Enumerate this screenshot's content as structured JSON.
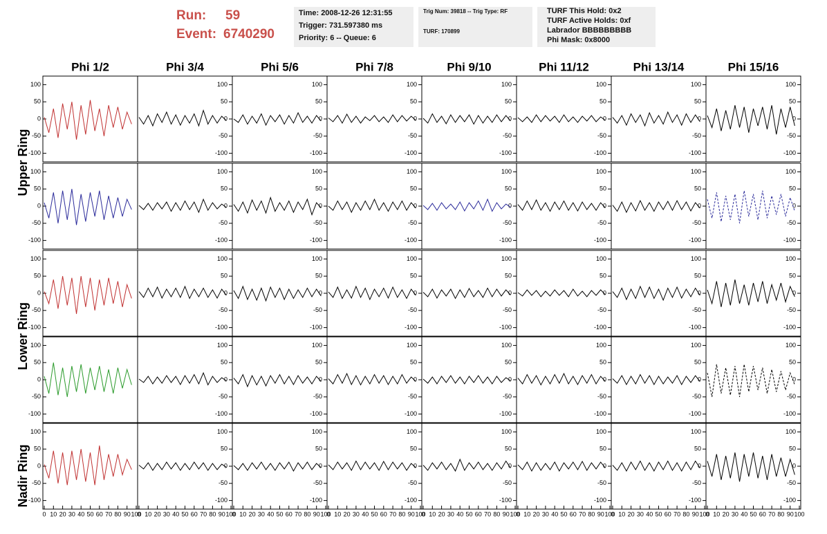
{
  "header": {
    "run_label": "Run:",
    "run": "59",
    "event_label": "Event:",
    "event": "6740290"
  },
  "info_boxes": [
    [
      "Time: 2008-12-26 12:31:55",
      "Trigger: 731.597380 ms",
      "Priority: 6 -- Queue: 6"
    ],
    [
      "Trig Num: 39818 -- Trig Type: RF",
      "TURF: 170899"
    ],
    [
      "TURF This Hold: 0x2",
      "TURF Active Holds: 0xf",
      "Labrador BBBBBBBBB",
      "Phi Mask: 0x8000"
    ]
  ],
  "columns": [
    "Phi 1/2",
    "Phi 3/4",
    "Phi 5/6",
    "Phi 7/8",
    "Phi 9/10",
    "Phi 11/12",
    "Phi 13/14",
    "Phi 15/16"
  ],
  "rings": [
    "Upper Ring",
    "Lower Ring",
    "Nadir Ring"
  ],
  "ylim": [
    -125,
    125
  ],
  "yticks": [
    -100,
    -50,
    0,
    50,
    100
  ],
  "xlim": [
    0,
    100
  ],
  "xticks": [
    0,
    10,
    20,
    30,
    40,
    50,
    60,
    70,
    80,
    90,
    100
  ],
  "sample_x": [
    0,
    5,
    10,
    15,
    20,
    25,
    30,
    35,
    40,
    45,
    50,
    55,
    60,
    65,
    70,
    75,
    80,
    85,
    90,
    95
  ],
  "panels": [
    [
      {
        "color": "#c03030",
        "values": [
          5,
          -40,
          30,
          -55,
          45,
          -30,
          50,
          -60,
          40,
          -45,
          55,
          -35,
          30,
          -50,
          40,
          -25,
          35,
          -30,
          20,
          -15
        ]
      },
      {
        "color": "#000000",
        "values": [
          5,
          -15,
          10,
          -20,
          15,
          -10,
          20,
          -15,
          12,
          -18,
          10,
          -12,
          15,
          -20,
          25,
          -15,
          10,
          -12,
          8,
          -5
        ]
      },
      {
        "color": "#000000",
        "values": [
          0,
          -10,
          12,
          -15,
          8,
          -12,
          15,
          -18,
          10,
          -8,
          12,
          -15,
          10,
          -12,
          18,
          -10,
          8,
          -12,
          10,
          -6
        ]
      },
      {
        "color": "#000000",
        "values": [
          3,
          -8,
          10,
          -12,
          14,
          -10,
          8,
          -12,
          6,
          -5,
          10,
          -8,
          6,
          -10,
          12,
          -8,
          10,
          -6,
          8,
          -4
        ]
      },
      {
        "color": "#000000",
        "values": [
          2,
          -12,
          15,
          -10,
          8,
          -14,
          12,
          -10,
          10,
          -8,
          12,
          -15,
          10,
          -12,
          8,
          -10,
          12,
          -8,
          10,
          -6
        ]
      },
      {
        "color": "#000000",
        "values": [
          4,
          -8,
          6,
          -10,
          12,
          -8,
          10,
          -6,
          8,
          -10,
          12,
          -8,
          6,
          -10,
          8,
          -6,
          10,
          -8,
          6,
          -4
        ]
      },
      {
        "color": "#000000",
        "values": [
          5,
          -12,
          10,
          -18,
          15,
          -10,
          12,
          -20,
          18,
          -12,
          10,
          -15,
          20,
          -10,
          12,
          -18,
          15,
          -10,
          12,
          -8
        ]
      },
      {
        "color": "#000000",
        "values": [
          10,
          -25,
          30,
          -35,
          25,
          -30,
          40,
          -25,
          35,
          -40,
          30,
          -20,
          35,
          -30,
          40,
          -45,
          30,
          -25,
          35,
          -20
        ]
      }
    ],
    [
      {
        "color": "#2a2a9a",
        "values": [
          10,
          -35,
          40,
          -50,
          45,
          -40,
          50,
          -55,
          35,
          -45,
          40,
          -30,
          45,
          -40,
          30,
          -35,
          25,
          -30,
          20,
          -10
        ]
      },
      {
        "color": "#000000",
        "values": [
          2,
          -10,
          8,
          -12,
          10,
          -8,
          12,
          -15,
          10,
          -12,
          15,
          -10,
          12,
          -18,
          20,
          -12,
          10,
          -8,
          6,
          -4
        ]
      },
      {
        "color": "#000000",
        "values": [
          5,
          -15,
          12,
          -20,
          18,
          -12,
          15,
          -20,
          25,
          -15,
          10,
          -12,
          15,
          -18,
          12,
          -10,
          20,
          -25,
          10,
          -5
        ]
      },
      {
        "color": "#000000",
        "values": [
          0,
          -12,
          15,
          -10,
          12,
          -18,
          10,
          -12,
          15,
          -10,
          20,
          -12,
          10,
          -15,
          12,
          -10,
          15,
          -12,
          10,
          -6
        ]
      },
      {
        "color": "#2a2a9a",
        "values": [
          2,
          -10,
          8,
          -12,
          10,
          -8,
          6,
          -10,
          12,
          -14,
          10,
          -8,
          15,
          -12,
          20,
          -15,
          10,
          -8,
          6,
          -3
        ]
      },
      {
        "color": "#000000",
        "values": [
          5,
          -12,
          15,
          -10,
          18,
          -12,
          10,
          -15,
          12,
          -10,
          15,
          -12,
          10,
          -14,
          12,
          -10,
          8,
          -12,
          10,
          -5
        ]
      },
      {
        "color": "#000000",
        "values": [
          3,
          -15,
          12,
          -18,
          10,
          -14,
          16,
          -12,
          10,
          -15,
          12,
          -10,
          14,
          -12,
          16,
          -10,
          12,
          -14,
          10,
          -6
        ]
      },
      {
        "color": "#2a2a9a",
        "dashed": true,
        "values": [
          20,
          -35,
          40,
          -45,
          30,
          -40,
          35,
          -50,
          45,
          -30,
          35,
          -40,
          45,
          -35,
          30,
          -25,
          35,
          -30,
          25,
          -15
        ]
      }
    ],
    [
      {
        "color": "#c03030",
        "values": [
          5,
          -30,
          40,
          -45,
          50,
          -35,
          45,
          -60,
          50,
          -40,
          45,
          -50,
          40,
          -35,
          45,
          -30,
          35,
          -40,
          25,
          -15
        ]
      },
      {
        "color": "#000000",
        "values": [
          5,
          -12,
          15,
          -10,
          18,
          -14,
          12,
          -10,
          15,
          -12,
          20,
          -15,
          12,
          -10,
          15,
          -12,
          10,
          -14,
          12,
          -6
        ]
      },
      {
        "color": "#000000",
        "values": [
          8,
          -15,
          20,
          -18,
          12,
          -20,
          15,
          -22,
          18,
          -12,
          15,
          -18,
          12,
          -15,
          10,
          -12,
          15,
          -10,
          12,
          -8
        ]
      },
      {
        "color": "#000000",
        "values": [
          4,
          -12,
          18,
          -15,
          10,
          -14,
          20,
          -12,
          15,
          -18,
          12,
          -10,
          15,
          -14,
          18,
          -12,
          10,
          -15,
          12,
          -6
        ]
      },
      {
        "color": "#000000",
        "values": [
          3,
          -10,
          12,
          -14,
          10,
          -8,
          12,
          -15,
          10,
          -12,
          14,
          -10,
          8,
          -12,
          15,
          -10,
          12,
          -8,
          10,
          -5
        ]
      },
      {
        "color": "#000000",
        "values": [
          2,
          -8,
          10,
          -6,
          8,
          -10,
          6,
          -8,
          10,
          -6,
          8,
          -10,
          12,
          -8,
          6,
          -10,
          8,
          -6,
          10,
          -4
        ]
      },
      {
        "color": "#000000",
        "values": [
          5,
          -12,
          15,
          -18,
          12,
          -15,
          20,
          -12,
          18,
          -15,
          12,
          -20,
          15,
          -12,
          18,
          -14,
          12,
          -10,
          15,
          -6
        ]
      },
      {
        "color": "#000000",
        "values": [
          10,
          -30,
          35,
          -40,
          30,
          -35,
          40,
          -30,
          25,
          -35,
          30,
          -25,
          35,
          -30,
          25,
          -20,
          30,
          -25,
          20,
          -10
        ]
      }
    ],
    [
      {
        "color": "#2a9a2a",
        "values": [
          10,
          -40,
          50,
          -45,
          35,
          -50,
          40,
          -35,
          45,
          -40,
          35,
          -30,
          40,
          -35,
          30,
          -40,
          35,
          -25,
          30,
          -15
        ]
      },
      {
        "color": "#000000",
        "values": [
          2,
          -8,
          10,
          -12,
          8,
          -10,
          12,
          -8,
          10,
          -14,
          12,
          -10,
          15,
          -12,
          20,
          -15,
          10,
          -8,
          6,
          -3
        ]
      },
      {
        "color": "#000000",
        "values": [
          5,
          -12,
          15,
          -20,
          12,
          -15,
          10,
          -18,
          12,
          -10,
          15,
          -12,
          10,
          -14,
          12,
          -10,
          8,
          -12,
          10,
          -5
        ]
      },
      {
        "color": "#000000",
        "values": [
          3,
          -12,
          15,
          -10,
          18,
          -14,
          12,
          -15,
          10,
          -12,
          15,
          -10,
          12,
          -14,
          10,
          -12,
          15,
          -10,
          8,
          -5
        ]
      },
      {
        "color": "#000000",
        "values": [
          2,
          -10,
          8,
          -12,
          10,
          -8,
          12,
          -10,
          8,
          -12,
          10,
          -8,
          12,
          -10,
          8,
          -12,
          10,
          -8,
          6,
          -3
        ]
      },
      {
        "color": "#000000",
        "values": [
          5,
          -12,
          15,
          -10,
          12,
          -15,
          10,
          -12,
          15,
          -10,
          18,
          -12,
          10,
          -14,
          12,
          -10,
          15,
          -12,
          10,
          -5
        ]
      },
      {
        "color": "#000000",
        "values": [
          3,
          -10,
          12,
          -14,
          10,
          -12,
          15,
          -10,
          12,
          -14,
          10,
          -12,
          8,
          -10,
          12,
          -14,
          10,
          -8,
          12,
          -5
        ]
      },
      {
        "color": "#000000",
        "dashed": true,
        "values": [
          20,
          -50,
          45,
          -40,
          35,
          -45,
          40,
          -50,
          45,
          -35,
          40,
          -30,
          35,
          -40,
          30,
          -35,
          25,
          -30,
          20,
          -15
        ]
      }
    ],
    [
      {
        "color": "#c03030",
        "values": [
          5,
          -35,
          45,
          -50,
          40,
          -55,
          45,
          -40,
          50,
          -45,
          40,
          -55,
          60,
          -40,
          35,
          -30,
          35,
          -25,
          20,
          -10
        ]
      },
      {
        "color": "#000000",
        "values": [
          3,
          -8,
          10,
          -12,
          8,
          -10,
          12,
          -8,
          10,
          -12,
          8,
          -10,
          12,
          -8,
          10,
          -12,
          8,
          -10,
          6,
          -3
        ]
      },
      {
        "color": "#000000",
        "values": [
          2,
          -10,
          8,
          -12,
          10,
          -8,
          12,
          -10,
          8,
          -12,
          10,
          -8,
          12,
          -14,
          10,
          -8,
          12,
          -10,
          8,
          -4
        ]
      },
      {
        "color": "#000000",
        "values": [
          4,
          -10,
          12,
          -8,
          10,
          -12,
          15,
          -10,
          12,
          -8,
          10,
          -12,
          14,
          -10,
          12,
          -8,
          10,
          -12,
          8,
          -4
        ]
      },
      {
        "color": "#000000",
        "values": [
          3,
          -12,
          10,
          -8,
          12,
          -10,
          8,
          -14,
          20,
          -12,
          10,
          -8,
          12,
          -10,
          8,
          -12,
          10,
          -8,
          15,
          -5
        ]
      },
      {
        "color": "#000000",
        "values": [
          4,
          -10,
          12,
          -14,
          10,
          -12,
          8,
          -10,
          12,
          -14,
          10,
          -8,
          12,
          -10,
          14,
          -12,
          10,
          -8,
          12,
          -5
        ]
      },
      {
        "color": "#000000",
        "values": [
          3,
          -12,
          10,
          -14,
          12,
          -10,
          15,
          -12,
          10,
          -14,
          12,
          -10,
          15,
          -12,
          10,
          -14,
          12,
          -10,
          15,
          -5
        ]
      },
      {
        "color": "#000000",
        "values": [
          15,
          -30,
          35,
          -40,
          30,
          -35,
          40,
          -45,
          35,
          -30,
          40,
          -35,
          30,
          -40,
          35,
          -30,
          25,
          -30,
          20,
          -25
        ]
      }
    ]
  ]
}
